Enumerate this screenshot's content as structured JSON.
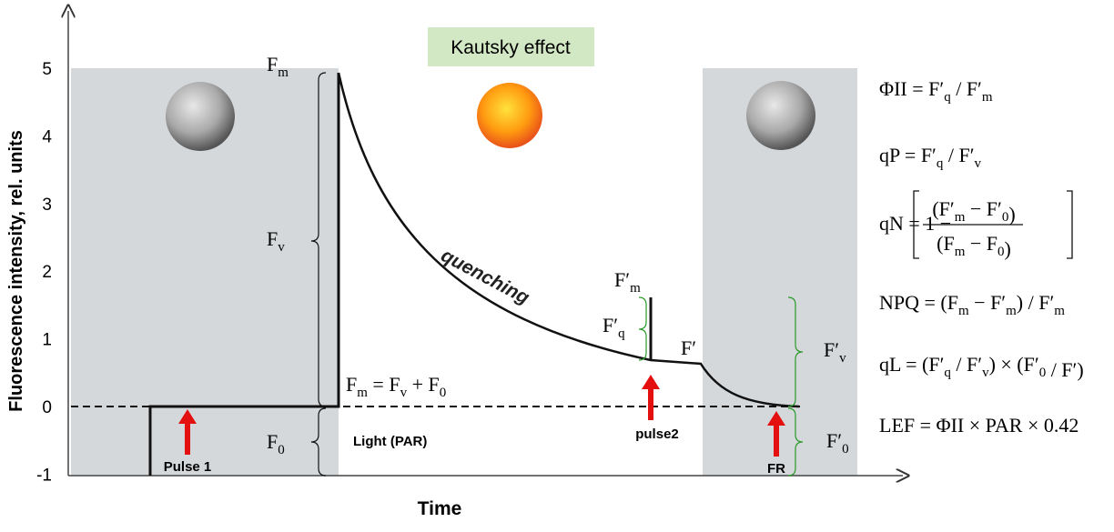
{
  "title": "Kautsky effect",
  "axes": {
    "y_label": "Fluorescence intensity, rel. units",
    "x_label": "Time",
    "yticks": [
      -1,
      0,
      1,
      2,
      3,
      4,
      5
    ]
  },
  "light_label": "Light (PAR)",
  "pulses": [
    "Pulse 1",
    "pulse2",
    "FR"
  ],
  "curve_label": "quenching",
  "parameters": {
    "fm": [
      {
        "text": "F",
        "sub": "m"
      }
    ],
    "fv": [
      {
        "text": "F",
        "sub": "v"
      }
    ],
    "f0": [
      {
        "text": "F",
        "sub": "0"
      }
    ],
    "sum": [
      {
        "text": "F",
        "sub": "m"
      },
      {
        "text": " = F",
        "sub": "v"
      },
      {
        "text": " + F",
        "sub": "0"
      }
    ],
    "fm_prime": [
      {
        "text": "F′",
        "sub": "m"
      }
    ],
    "fq_prime": [
      {
        "text": "F′",
        "sub": "q"
      }
    ],
    "f_prime": [
      {
        "text": "F′"
      }
    ],
    "fv_prime": [
      {
        "text": "F′",
        "sub": "v"
      }
    ],
    "f0_prime": [
      {
        "text": "F′",
        "sub": "0"
      }
    ]
  },
  "formulas": {
    "phi": [
      {
        "text": "ΦII = F′",
        "sub": "q"
      },
      {
        "text": " / F′",
        "sub": "m"
      }
    ],
    "qp": [
      {
        "text": "qP = F′",
        "sub": "q"
      },
      {
        "text": " / F′",
        "sub": "v"
      }
    ],
    "qn": {
      "lhs": [
        {
          "text": "qN = 1 −"
        }
      ],
      "numerator": [
        {
          "text": "(F′",
          "sub": "m"
        },
        {
          "text": " − F′",
          "sub": "0"
        },
        {
          "text": ")"
        }
      ],
      "denominator": [
        {
          "text": "(F",
          "sub": "m"
        },
        {
          "text": " − F",
          "sub": "0"
        },
        {
          "text": ")"
        }
      ]
    },
    "npq": [
      {
        "text": "NPQ = (F",
        "sub": "m"
      },
      {
        "text": " − F′",
        "sub": "m"
      },
      {
        "text": ") / F′",
        "sub": "m"
      }
    ],
    "ql": [
      {
        "text": "qL = (F′",
        "sub": "q"
      },
      {
        "text": " / F′",
        "sub": "v"
      },
      {
        "text": ") × (F′",
        "sub": "0"
      },
      {
        "text": " / F′)"
      }
    ],
    "lef": [
      {
        "text": "LEF = ΦII × PAR × 0.42"
      }
    ]
  }
}
